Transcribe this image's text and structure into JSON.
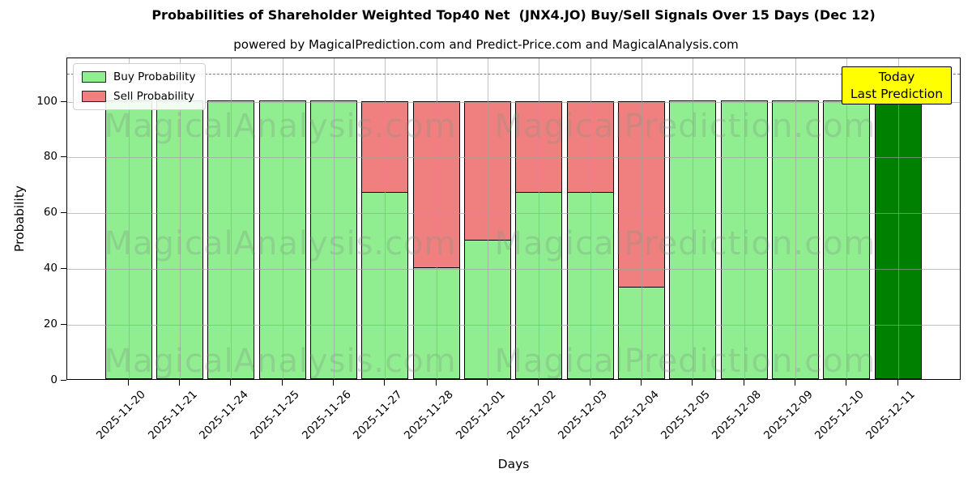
{
  "title": "Probabilities of Shareholder Weighted Top40 Net  (JNX4.JO) Buy/Sell Signals Over 15 Days (Dec 12)",
  "subtitle": "powered by MagicalPrediction.com and Predict-Price.com and MagicalAnalysis.com",
  "legend": {
    "buy_label": "Buy Probability",
    "sell_label": "Sell Probability"
  },
  "annotation": {
    "line1": "Today",
    "line2": "Last Prediction",
    "bg": "#FFFF00"
  },
  "watermarks": {
    "left": "MagicalAnalysis.com",
    "right": "MagicalPrediction.com"
  },
  "colors": {
    "buy": "#90EE90",
    "sell": "#F08080",
    "today": "#008000",
    "edge": "#000000",
    "grid": "#B0B0B0",
    "dashed_line": "#7A7A7A"
  },
  "chart_data": {
    "type": "bar",
    "stacked": true,
    "title": "Probabilities of Shareholder Weighted Top40 Net  (JNX4.JO) Buy/Sell Signals Over 15 Days (Dec 12)",
    "xlabel": "Days",
    "ylabel": "Probability",
    "categories": [
      "2025-11-20",
      "2025-11-21",
      "2025-11-24",
      "2025-11-25",
      "2025-11-26",
      "2025-11-27",
      "2025-11-28",
      "2025-12-01",
      "2025-12-02",
      "2025-12-03",
      "2025-12-04",
      "2025-12-05",
      "2025-12-08",
      "2025-12-09",
      "2025-12-10",
      "2025-12-11"
    ],
    "series": [
      {
        "name": "Buy Probability",
        "color": "#90EE90",
        "values": [
          100,
          100,
          100,
          100,
          100,
          67,
          40,
          50,
          67,
          67,
          33,
          100,
          100,
          100,
          100,
          100
        ]
      },
      {
        "name": "Sell Probability",
        "color": "#F08080",
        "values": [
          0,
          0,
          0,
          0,
          0,
          33,
          60,
          50,
          33,
          33,
          67,
          0,
          0,
          0,
          0,
          0
        ]
      }
    ],
    "today_bar_index": 15,
    "today_bar_color": "#008000",
    "yticks": [
      0,
      20,
      40,
      60,
      80,
      100
    ],
    "ylim": [
      0,
      115.5
    ],
    "dashed_line_y": 110,
    "grid": true,
    "legend_position": "upper left"
  }
}
